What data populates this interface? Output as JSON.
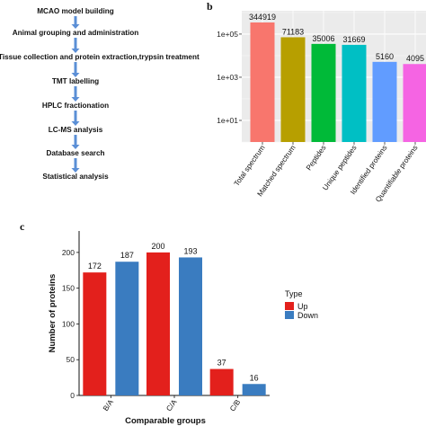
{
  "flowchart": {
    "steps": [
      "MCAO model building",
      "Animal grouping and administration",
      "Tissue collection and protein extraction,trypsin treatment",
      "TMT labelling",
      "HPLC fractionation",
      "LC-MS analysis",
      "Database search",
      "Statistical analysis"
    ],
    "arrow_color": "#5b8fd6"
  },
  "chart_data": [
    {
      "panel": "b",
      "type": "bar",
      "scale": "log",
      "categories": [
        "Total spectrum",
        "Matched spectrum",
        "Peptides",
        "Unique peptides",
        "Identified proteins",
        "Quantifiable proteins"
      ],
      "values": [
        344919,
        71183,
        35006,
        31669,
        5160,
        4095
      ],
      "value_labels": [
        "344919",
        "71183",
        "35006",
        "31669",
        "5160",
        "4095"
      ],
      "colors": [
        "#f8766d",
        "#b79f00",
        "#00ba38",
        "#00bfc4",
        "#619cff",
        "#f564e3"
      ],
      "yticks": [
        10,
        1000,
        100000
      ],
      "ytick_labels": [
        "1e+01",
        "1e+03",
        "1e+05"
      ],
      "ylim": [
        1,
        1200000
      ],
      "grid": true,
      "background": "#ebebeb"
    },
    {
      "panel": "c",
      "type": "bar",
      "categories": [
        "B/A",
        "C/A",
        "C/B"
      ],
      "series": [
        {
          "name": "Up",
          "values": [
            172,
            200,
            37
          ],
          "color": "#e3201c"
        },
        {
          "name": "Down",
          "values": [
            187,
            193,
            16
          ],
          "color": "#3a7cc0"
        }
      ],
      "xlabel": "Comparable groups",
      "ylabel": "Number of proteins",
      "ylim": [
        0,
        230
      ],
      "yticks": [
        0,
        50,
        100,
        150,
        200
      ],
      "legend_title": "Type",
      "legend_position": "right",
      "grid": false
    }
  ]
}
